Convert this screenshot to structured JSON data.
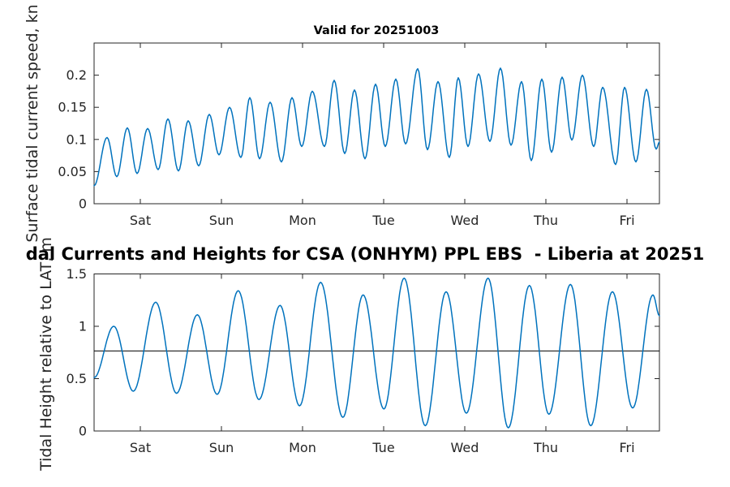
{
  "figure": {
    "main_title": "dal Currents and Heights for CSA (ONHYM) PPL EBS  - Liberia at 20251",
    "background": "#ffffff"
  },
  "chart_data": [
    {
      "type": "line",
      "id": "surface-current-speed",
      "title": "Valid for 20251003",
      "ylabel": "Surface tidal current speed, kn",
      "xlabel": "",
      "grid": false,
      "legend": null,
      "line_color": "#0072BD",
      "axis_color": "#262626",
      "xlim": [
        0,
        6.97
      ],
      "ylim": [
        0,
        0.25
      ],
      "x_tick_positions": [
        0.57,
        1.57,
        2.57,
        3.57,
        4.57,
        5.57,
        6.57
      ],
      "x_tick_labels": [
        "Sat",
        "Sun",
        "Mon",
        "Tue",
        "Wed",
        "Thu",
        "Fri"
      ],
      "y_ticks": [
        0,
        0.05,
        0.1,
        0.15,
        0.2
      ],
      "y_tick_labels": [
        "0",
        "0.05",
        "0.1",
        "0.15",
        "0.2"
      ],
      "points_format": "alternating trough/peak extrema [t_days_from_left_edge, speed_kn], smoothly interpolated",
      "points": [
        [
          0.0,
          0.028
        ],
        [
          0.16,
          0.103
        ],
        [
          0.28,
          0.042
        ],
        [
          0.41,
          0.118
        ],
        [
          0.53,
          0.047
        ],
        [
          0.66,
          0.117
        ],
        [
          0.79,
          0.053
        ],
        [
          0.91,
          0.132
        ],
        [
          1.04,
          0.051
        ],
        [
          1.16,
          0.129
        ],
        [
          1.29,
          0.059
        ],
        [
          1.42,
          0.139
        ],
        [
          1.54,
          0.076
        ],
        [
          1.67,
          0.15
        ],
        [
          1.81,
          0.072
        ],
        [
          1.92,
          0.165
        ],
        [
          2.04,
          0.07
        ],
        [
          2.17,
          0.158
        ],
        [
          2.31,
          0.065
        ],
        [
          2.44,
          0.165
        ],
        [
          2.56,
          0.089
        ],
        [
          2.69,
          0.175
        ],
        [
          2.84,
          0.089
        ],
        [
          2.96,
          0.192
        ],
        [
          3.09,
          0.078
        ],
        [
          3.21,
          0.177
        ],
        [
          3.34,
          0.07
        ],
        [
          3.47,
          0.186
        ],
        [
          3.59,
          0.089
        ],
        [
          3.72,
          0.194
        ],
        [
          3.84,
          0.093
        ],
        [
          3.99,
          0.21
        ],
        [
          4.11,
          0.084
        ],
        [
          4.24,
          0.19
        ],
        [
          4.38,
          0.072
        ],
        [
          4.49,
          0.196
        ],
        [
          4.61,
          0.089
        ],
        [
          4.74,
          0.202
        ],
        [
          4.88,
          0.097
        ],
        [
          5.01,
          0.211
        ],
        [
          5.14,
          0.091
        ],
        [
          5.27,
          0.19
        ],
        [
          5.39,
          0.067
        ],
        [
          5.52,
          0.194
        ],
        [
          5.64,
          0.08
        ],
        [
          5.77,
          0.197
        ],
        [
          5.89,
          0.099
        ],
        [
          6.02,
          0.2
        ],
        [
          6.16,
          0.089
        ],
        [
          6.27,
          0.181
        ],
        [
          6.43,
          0.061
        ],
        [
          6.54,
          0.181
        ],
        [
          6.68,
          0.065
        ],
        [
          6.81,
          0.178
        ],
        [
          6.93,
          0.085
        ],
        [
          6.97,
          0.096
        ]
      ]
    },
    {
      "type": "line",
      "id": "tidal-height",
      "title": "",
      "ylabel": "Tidal Height relative to LAT, m",
      "xlabel": "",
      "grid": false,
      "legend": null,
      "line_color": "#0072BD",
      "axis_color": "#262626",
      "xlim": [
        0,
        6.97
      ],
      "ylim": [
        0,
        1.5
      ],
      "x_tick_positions": [
        0.57,
        1.57,
        2.57,
        3.57,
        4.57,
        5.57,
        6.57
      ],
      "x_tick_labels": [
        "Sat",
        "Sun",
        "Mon",
        "Tue",
        "Wed",
        "Thu",
        "Fri"
      ],
      "y_ticks": [
        0,
        0.5,
        1,
        1.5
      ],
      "y_tick_labels": [
        "0",
        "0.5",
        "1",
        "1.5"
      ],
      "ref_line": {
        "value": 0.765,
        "color": "#000000"
      },
      "points_format": "alternating trough/peak extrema [t_days_from_left_edge, height_m], smoothly interpolated",
      "points": [
        [
          0.0,
          0.51
        ],
        [
          0.243,
          1.0
        ],
        [
          0.483,
          0.38
        ],
        [
          0.76,
          1.23
        ],
        [
          1.017,
          0.36
        ],
        [
          1.273,
          1.11
        ],
        [
          1.517,
          0.35
        ],
        [
          1.777,
          1.34
        ],
        [
          2.033,
          0.3
        ],
        [
          2.293,
          1.2
        ],
        [
          2.533,
          0.24
        ],
        [
          2.793,
          1.42
        ],
        [
          3.067,
          0.13
        ],
        [
          3.317,
          1.3
        ],
        [
          3.573,
          0.21
        ],
        [
          3.823,
          1.46
        ],
        [
          4.083,
          0.05
        ],
        [
          4.34,
          1.33
        ],
        [
          4.59,
          0.17
        ],
        [
          4.857,
          1.46
        ],
        [
          5.107,
          0.03
        ],
        [
          5.367,
          1.39
        ],
        [
          5.607,
          0.16
        ],
        [
          5.873,
          1.4
        ],
        [
          6.123,
          0.05
        ],
        [
          6.39,
          1.33
        ],
        [
          6.64,
          0.22
        ],
        [
          6.89,
          1.3
        ],
        [
          6.97,
          1.1
        ]
      ]
    }
  ]
}
